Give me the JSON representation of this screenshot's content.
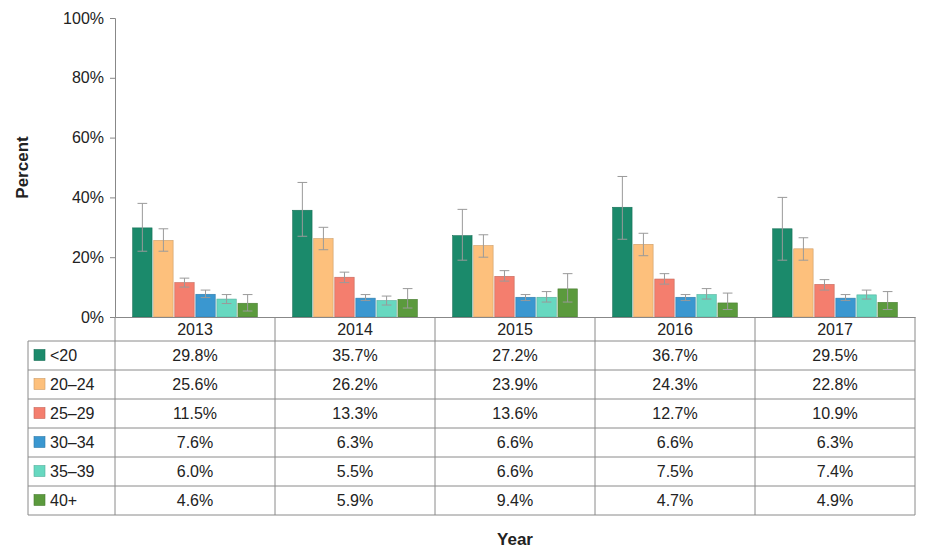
{
  "chart_data": {
    "type": "bar",
    "x_label": "Year",
    "y_label": "Percent",
    "categories": [
      "2013",
      "2014",
      "2015",
      "2016",
      "2017"
    ],
    "ylim": [
      0,
      100
    ],
    "yticks": [
      {
        "value": 0,
        "label": "0%"
      },
      {
        "value": 20,
        "label": "20%"
      },
      {
        "value": 40,
        "label": "40%"
      },
      {
        "value": 60,
        "label": "60%"
      },
      {
        "value": 80,
        "label": "80%"
      },
      {
        "value": 100,
        "label": "100%"
      }
    ],
    "grid": false,
    "series": [
      {
        "name": "<20",
        "color": "#1b8a6b",
        "values": [
          29.8,
          35.7,
          27.2,
          36.7,
          29.5
        ],
        "value_labels": [
          "29.8%",
          "35.7%",
          "27.2%",
          "36.7%",
          "29.5%"
        ],
        "lower": [
          22,
          27,
          19,
          26,
          19
        ],
        "upper": [
          38,
          45,
          36,
          47,
          40
        ]
      },
      {
        "name": "20–24",
        "color": "#fdc07c",
        "values": [
          25.6,
          26.2,
          23.9,
          24.3,
          22.8
        ],
        "value_labels": [
          "25.6%",
          "26.2%",
          "23.9%",
          "24.3%",
          "22.8%"
        ],
        "lower": [
          22,
          22.5,
          20,
          20.5,
          19
        ],
        "upper": [
          29.5,
          30,
          27.5,
          28,
          26.5
        ]
      },
      {
        "name": "25–29",
        "color": "#f47e6e",
        "values": [
          11.5,
          13.3,
          13.6,
          12.7,
          10.9
        ],
        "value_labels": [
          "11.5%",
          "13.3%",
          "13.6%",
          "12.7%",
          "10.9%"
        ],
        "lower": [
          10,
          11.5,
          12,
          11,
          9
        ],
        "upper": [
          13,
          15,
          15.5,
          14.5,
          12.5
        ]
      },
      {
        "name": "30–34",
        "color": "#3a97d0",
        "values": [
          7.6,
          6.3,
          6.6,
          6.6,
          6.3
        ],
        "value_labels": [
          "7.6%",
          "6.3%",
          "6.6%",
          "6.6%",
          "6.3%"
        ],
        "lower": [
          6.5,
          5.5,
          5.5,
          5.5,
          5.5
        ],
        "upper": [
          9,
          7.5,
          7.5,
          7.5,
          7.5
        ]
      },
      {
        "name": "35–39",
        "color": "#67d8c0",
        "values": [
          6.0,
          5.5,
          6.6,
          7.5,
          7.4
        ],
        "value_labels": [
          "6.0%",
          "5.5%",
          "6.6%",
          "7.5%",
          "7.4%"
        ],
        "lower": [
          4.5,
          4,
          5,
          6,
          6
        ],
        "upper": [
          7.5,
          7,
          8.5,
          9.5,
          9
        ]
      },
      {
        "name": "40+",
        "color": "#5b9a3d",
        "values": [
          4.6,
          5.9,
          9.4,
          4.7,
          4.9
        ],
        "value_labels": [
          "4.6%",
          "5.9%",
          "9.4%",
          "4.7%",
          "4.9%"
        ],
        "lower": [
          2,
          3,
          5,
          2.5,
          2.5
        ],
        "upper": [
          7.5,
          9.5,
          14.5,
          8,
          8.5
        ]
      }
    ]
  }
}
